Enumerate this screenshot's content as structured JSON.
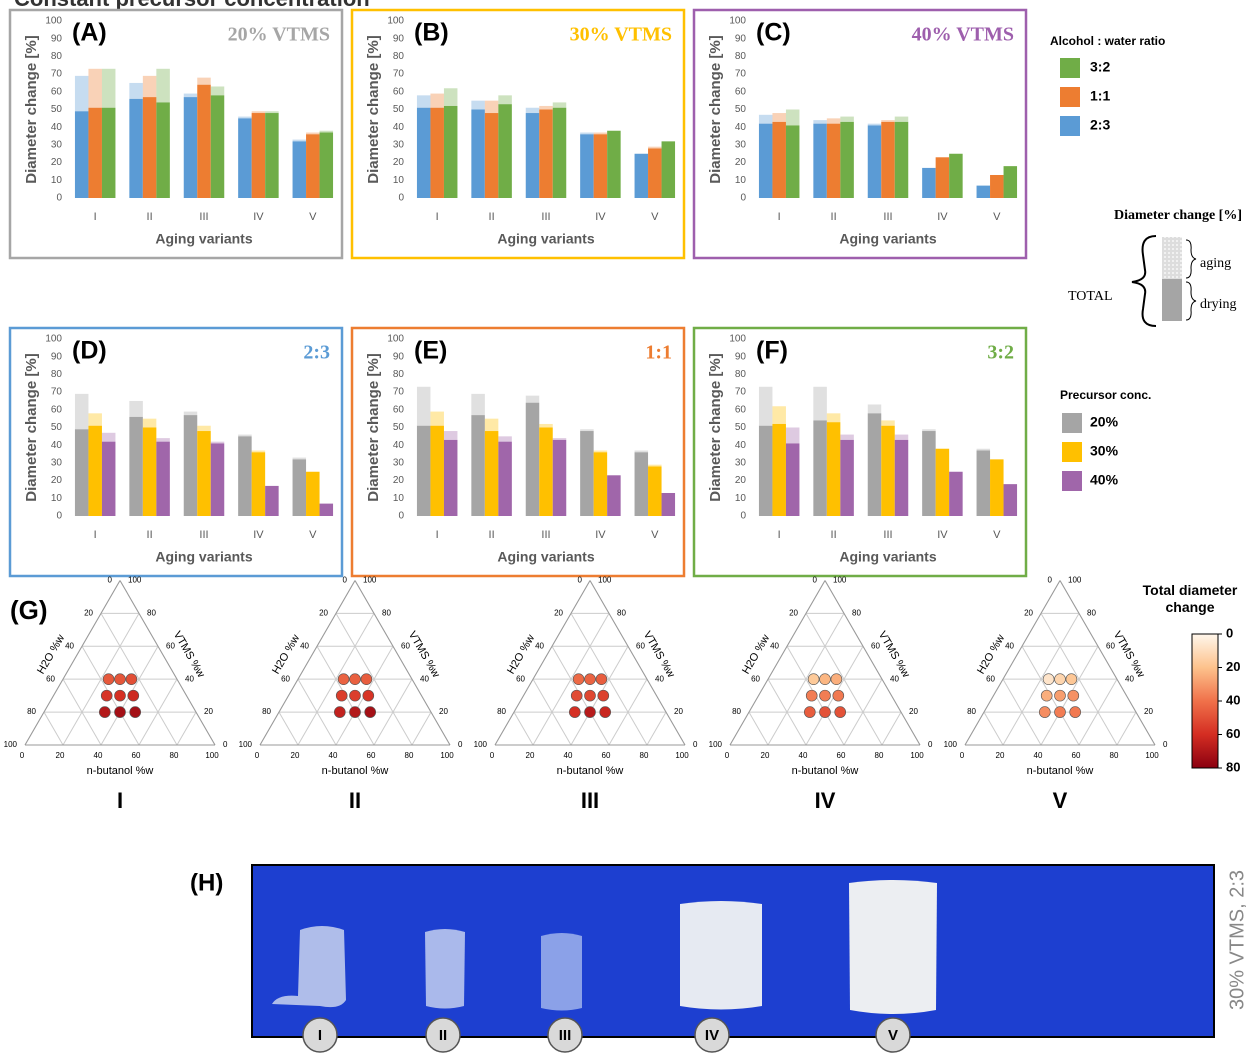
{
  "heading": "Constant precursor concentration",
  "legends": {
    "ratio_title": "Alcohol : water ratio",
    "precursor_title": "Precursor conc."
  },
  "drying_key": {
    "title": "Diameter change [%]",
    "total": "TOTAL",
    "aging": "aging",
    "drying": "drying"
  },
  "chart_data": [
    {
      "type": "bar",
      "label": "(A)",
      "annotation": "20% VTMS",
      "annotation_color": "#a6a6a6",
      "frame_color": "#a6a6a6",
      "ylabel": "Diameter change [%]",
      "xlabel": "Aging variants",
      "categories": [
        "I",
        "II",
        "III",
        "IV",
        "V"
      ],
      "ylim": [
        0,
        100
      ],
      "yticks": [
        0,
        10,
        20,
        30,
        40,
        50,
        60,
        70,
        80,
        90,
        100
      ],
      "series": [
        {
          "name": "2:3",
          "color": "#5b9bd5",
          "values": [
            49,
            56,
            57,
            45,
            32
          ],
          "aging": [
            20,
            9,
            2,
            1,
            1
          ]
        },
        {
          "name": "1:1",
          "color": "#ed7d31",
          "values": [
            51,
            57,
            64,
            48,
            36
          ],
          "aging": [
            22,
            12,
            4,
            1,
            1
          ]
        },
        {
          "name": "3:2",
          "color": "#70ad47",
          "values": [
            51,
            54,
            58,
            48,
            37
          ],
          "aging": [
            22,
            19,
            5,
            1,
            1
          ]
        }
      ]
    },
    {
      "type": "bar",
      "label": "(B)",
      "annotation": "30% VTMS",
      "annotation_color": "#ffc000",
      "frame_color": "#ffc000",
      "ylabel": "Diameter change [%]",
      "xlabel": "Aging variants",
      "categories": [
        "I",
        "II",
        "III",
        "IV",
        "V"
      ],
      "ylim": [
        0,
        100
      ],
      "yticks": [
        0,
        10,
        20,
        30,
        40,
        50,
        60,
        70,
        80,
        90,
        100
      ],
      "series": [
        {
          "name": "2:3",
          "color": "#5b9bd5",
          "values": [
            51,
            50,
            48,
            36,
            25
          ],
          "aging": [
            7,
            5,
            3,
            1,
            0
          ]
        },
        {
          "name": "1:1",
          "color": "#ed7d31",
          "values": [
            51,
            48,
            50,
            36,
            28
          ],
          "aging": [
            8,
            7,
            2,
            1,
            1
          ]
        },
        {
          "name": "3:2",
          "color": "#70ad47",
          "values": [
            52,
            53,
            51,
            38,
            32
          ],
          "aging": [
            10,
            5,
            3,
            0,
            0
          ]
        }
      ]
    },
    {
      "type": "bar",
      "label": "(C)",
      "annotation": "40% VTMS",
      "annotation_color": "#9e5fad",
      "frame_color": "#9e5fad",
      "ylabel": "Diameter change [%]",
      "xlabel": "Aging variants",
      "categories": [
        "I",
        "II",
        "III",
        "IV",
        "V"
      ],
      "ylim": [
        0,
        100
      ],
      "yticks": [
        0,
        10,
        20,
        30,
        40,
        50,
        60,
        70,
        80,
        90,
        100
      ],
      "series": [
        {
          "name": "2:3",
          "color": "#5b9bd5",
          "values": [
            42,
            42,
            41,
            17,
            7
          ],
          "aging": [
            5,
            2,
            1,
            0,
            0
          ]
        },
        {
          "name": "1:1",
          "color": "#ed7d31",
          "values": [
            43,
            42,
            43,
            23,
            13
          ],
          "aging": [
            5,
            3,
            1,
            0,
            0
          ]
        },
        {
          "name": "3:2",
          "color": "#70ad47",
          "values": [
            41,
            43,
            43,
            25,
            18
          ],
          "aging": [
            9,
            3,
            3,
            0,
            0
          ]
        }
      ]
    },
    {
      "type": "bar",
      "label": "(D)",
      "annotation": "2:3",
      "annotation_color": "#5b9bd5",
      "frame_color": "#5b9bd5",
      "ylabel": "Diameter change [%]",
      "xlabel": "Aging variants",
      "categories": [
        "I",
        "II",
        "III",
        "IV",
        "V"
      ],
      "ylim": [
        0,
        100
      ],
      "yticks": [
        0,
        10,
        20,
        30,
        40,
        50,
        60,
        70,
        80,
        90,
        100
      ],
      "series": [
        {
          "name": "20%",
          "color": "#a5a5a5",
          "values": [
            49,
            56,
            57,
            45,
            32
          ],
          "aging": [
            20,
            9,
            2,
            1,
            1
          ]
        },
        {
          "name": "30%",
          "color": "#ffc000",
          "values": [
            51,
            50,
            48,
            36,
            25
          ],
          "aging": [
            7,
            5,
            3,
            1,
            0
          ]
        },
        {
          "name": "40%",
          "color": "#a066aa",
          "values": [
            42,
            42,
            41,
            17,
            7
          ],
          "aging": [
            5,
            2,
            1,
            0,
            0
          ]
        }
      ]
    },
    {
      "type": "bar",
      "label": "(E)",
      "annotation": "1:1",
      "annotation_color": "#ed7d31",
      "frame_color": "#ed7d31",
      "ylabel": "Diameter change [%]",
      "xlabel": "Aging variants",
      "categories": [
        "I",
        "II",
        "III",
        "IV",
        "V"
      ],
      "ylim": [
        0,
        100
      ],
      "yticks": [
        0,
        10,
        20,
        30,
        40,
        50,
        60,
        70,
        80,
        90,
        100
      ],
      "series": [
        {
          "name": "20%",
          "color": "#a5a5a5",
          "values": [
            51,
            57,
            64,
            48,
            36
          ],
          "aging": [
            22,
            12,
            4,
            1,
            1
          ]
        },
        {
          "name": "30%",
          "color": "#ffc000",
          "values": [
            51,
            48,
            50,
            36,
            28
          ],
          "aging": [
            8,
            7,
            2,
            1,
            1
          ]
        },
        {
          "name": "40%",
          "color": "#a066aa",
          "values": [
            43,
            42,
            43,
            23,
            13
          ],
          "aging": [
            5,
            3,
            1,
            0,
            0
          ]
        }
      ]
    },
    {
      "type": "bar",
      "label": "(F)",
      "annotation": "3:2",
      "annotation_color": "#70ad47",
      "frame_color": "#70ad47",
      "ylabel": "Diameter change [%]",
      "xlabel": "Aging variants",
      "categories": [
        "I",
        "II",
        "III",
        "IV",
        "V"
      ],
      "ylim": [
        0,
        100
      ],
      "yticks": [
        0,
        10,
        20,
        30,
        40,
        50,
        60,
        70,
        80,
        90,
        100
      ],
      "series": [
        {
          "name": "20%",
          "color": "#a5a5a5",
          "values": [
            51,
            54,
            58,
            48,
            37
          ],
          "aging": [
            22,
            19,
            5,
            1,
            1
          ]
        },
        {
          "name": "30%",
          "color": "#ffc000",
          "values": [
            52,
            53,
            51,
            38,
            32
          ],
          "aging": [
            10,
            5,
            3,
            0,
            0
          ]
        },
        {
          "name": "40%",
          "color": "#a066aa",
          "values": [
            41,
            43,
            43,
            25,
            18
          ],
          "aging": [
            9,
            3,
            3,
            0,
            0
          ]
        }
      ]
    },
    {
      "type": "ternary",
      "label": "(G)",
      "axes": {
        "bottom": "n-butanol %w",
        "left": "H2O %w",
        "right": "VTMS %w"
      },
      "ticks": [
        0,
        20,
        40,
        60,
        80,
        100
      ],
      "compositions": {
        "vtms": [
          20,
          20,
          20,
          30,
          30,
          30,
          40,
          40,
          40
        ],
        "butanol": [
          32,
          40,
          48,
          28,
          35,
          42,
          24,
          30,
          36
        ],
        "water": [
          48,
          40,
          32,
          42,
          35,
          28,
          36,
          30,
          24
        ]
      },
      "panels": [
        {
          "title": "I",
          "values": [
            69,
            73,
            73,
            58,
            59,
            62,
            47,
            48,
            50
          ]
        },
        {
          "title": "II",
          "values": [
            65,
            69,
            73,
            55,
            55,
            58,
            44,
            45,
            46
          ]
        },
        {
          "title": "III",
          "values": [
            59,
            68,
            63,
            51,
            52,
            54,
            42,
            44,
            46
          ]
        },
        {
          "title": "IV",
          "values": [
            46,
            49,
            49,
            37,
            37,
            38,
            17,
            23,
            25
          ]
        },
        {
          "title": "V",
          "values": [
            33,
            37,
            38,
            25,
            29,
            32,
            7,
            13,
            18
          ]
        }
      ],
      "colorbar": {
        "title": "Total diameter change",
        "lim": [
          0,
          80
        ],
        "ticks": [
          0,
          20,
          40,
          60,
          80
        ],
        "colors": [
          "#fff7ec",
          "#fdc28c",
          "#f0714a",
          "#d42d22",
          "#8a0010"
        ]
      }
    },
    {
      "type": "photo",
      "label": "(H)",
      "caption": "30% VTMS, 2:3",
      "samples": [
        "I",
        "II",
        "III",
        "IV",
        "V"
      ]
    }
  ]
}
